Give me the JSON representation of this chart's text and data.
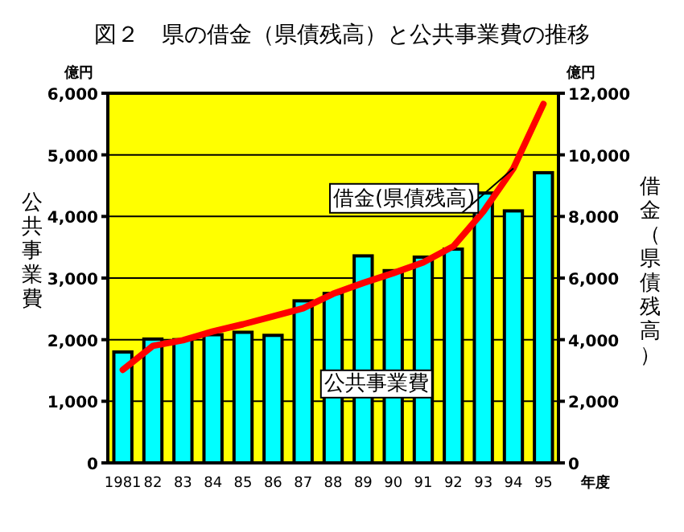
{
  "chart_data": {
    "type": "bar",
    "title": "図２　県の借金（県債残高）と公共事業費の推移",
    "categories": [
      "1981",
      "82",
      "83",
      "84",
      "85",
      "86",
      "87",
      "88",
      "89",
      "90",
      "91",
      "92",
      "93",
      "94",
      "95"
    ],
    "series": [
      {
        "name": "公共事業費",
        "color": "#00ffff",
        "values": [
          1800,
          2010,
          2000,
          2080,
          2120,
          2070,
          2630,
          2750,
          3360,
          3120,
          3340,
          3470,
          4380,
          4090,
          4710
        ]
      },
      {
        "name": "借金(県債残高)",
        "type": "line",
        "axis": "y2",
        "color": "#ff0000",
        "values": [
          3020,
          3800,
          3980,
          4270,
          4500,
          4760,
          5020,
          5490,
          5840,
          6160,
          6510,
          7030,
          8160,
          9560,
          11650
        ]
      }
    ],
    "ylabel": "公共事業費",
    "y2label": "借金（県債残高）",
    "ylim": [
      0,
      6000
    ],
    "yticks": [
      0,
      {
        "value": 1000,
        "label": "1,000"
      },
      {
        "value": 2000,
        "label": "2,000"
      },
      {
        "value": 3000,
        "label": "3,000"
      },
      {
        "value": 4000,
        "label": "4,000"
      },
      {
        "value": 5000,
        "label": "5,000"
      },
      {
        "value": 6000,
        "label": "6,000"
      }
    ],
    "y2lim": [
      0,
      12000
    ],
    "y2ticks": [
      0,
      {
        "value": 2000,
        "label": "2,000"
      },
      {
        "value": 4000,
        "label": "4,000"
      },
      {
        "value": 6000,
        "label": "6,000"
      },
      {
        "value": 8000,
        "label": "8,000"
      },
      {
        "value": 10000,
        "label": "10,000"
      },
      {
        "value": 12000,
        "label": "12,000"
      }
    ],
    "grid": "y",
    "annotations": [
      "億円",
      "億円",
      "年度"
    ]
  }
}
